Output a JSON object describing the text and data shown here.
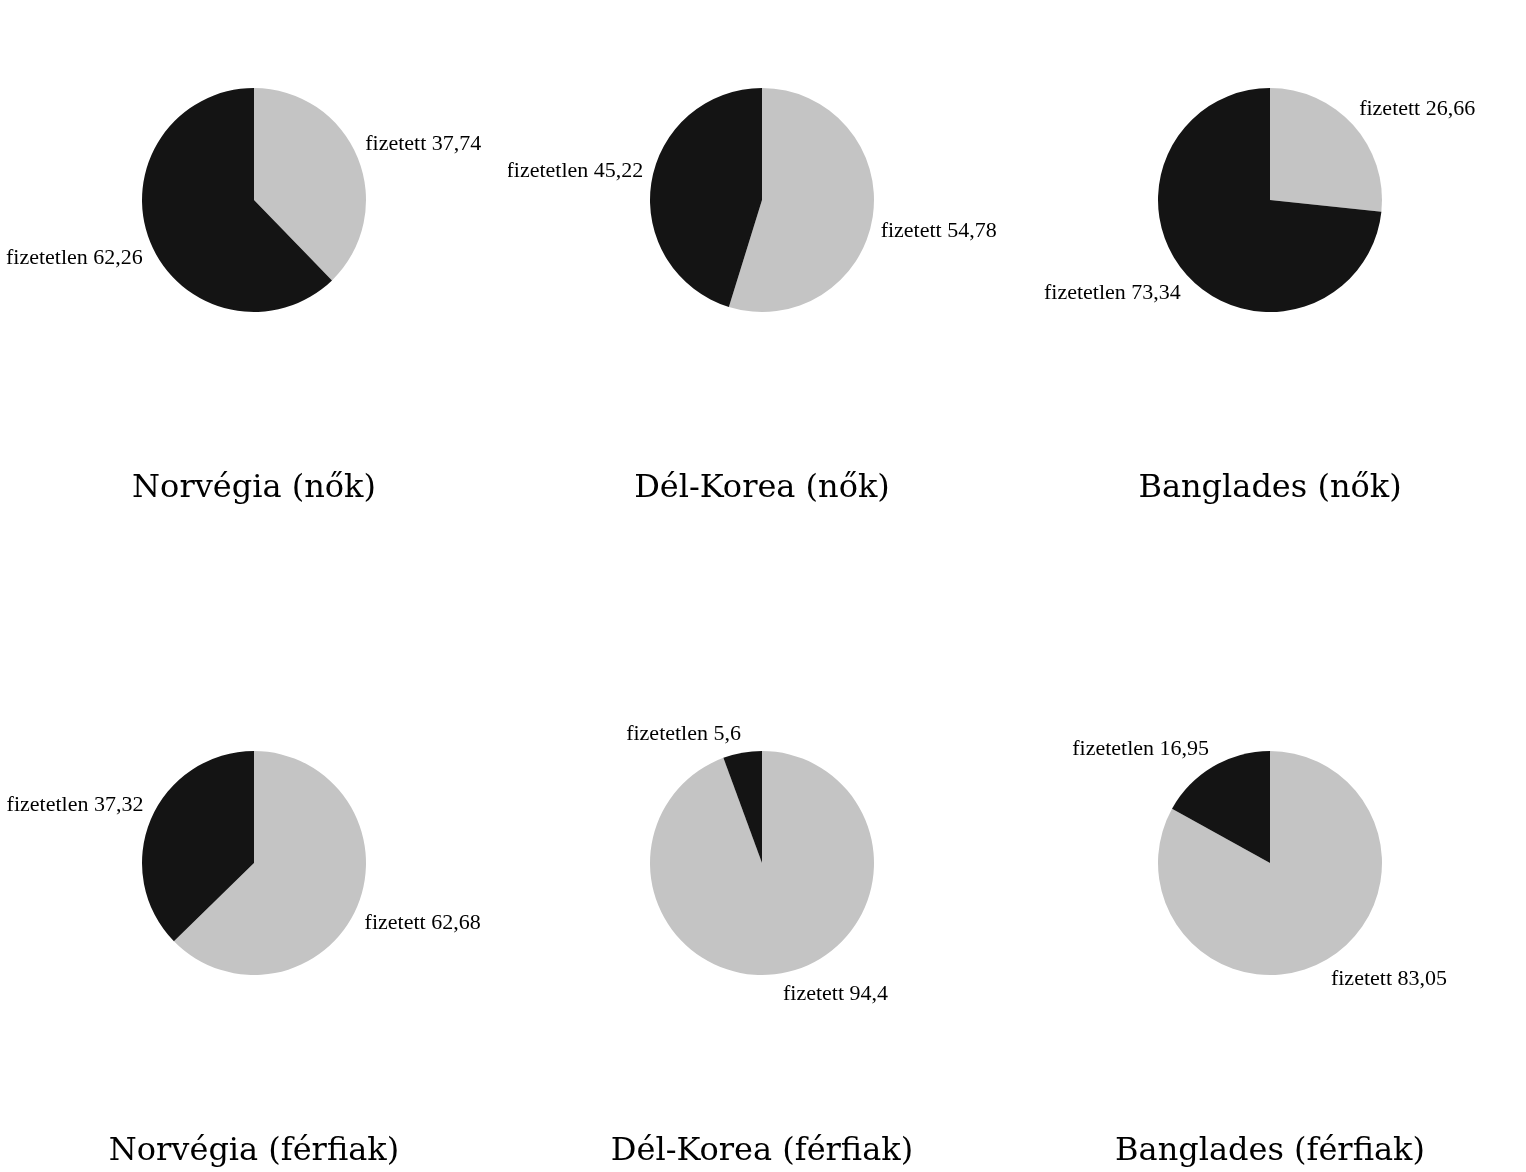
{
  "chart_data": [
    {
      "type": "pie",
      "title": "Norvégia (nők)",
      "categories": [
        "fizetett",
        "fizetetlen"
      ],
      "values": [
        37.74,
        62.26
      ],
      "colors": [
        "#c4c4c4",
        "#141414"
      ],
      "value_labels": [
        "37,74",
        "62,26"
      ]
    },
    {
      "type": "pie",
      "title": "Dél-Korea (nők)",
      "categories": [
        "fizetett",
        "fizetetlen"
      ],
      "values": [
        54.78,
        45.22
      ],
      "colors": [
        "#c4c4c4",
        "#141414"
      ],
      "value_labels": [
        "54,78",
        "45,22"
      ]
    },
    {
      "type": "pie",
      "title": "Banglades (nők)",
      "categories": [
        "fizetett",
        "fizetetlen"
      ],
      "values": [
        26.66,
        73.34
      ],
      "colors": [
        "#c4c4c4",
        "#141414"
      ],
      "value_labels": [
        "26,66",
        "73,34"
      ]
    },
    {
      "type": "pie",
      "title": "Norvégia (férfiak)",
      "categories": [
        "fizetett",
        "fizetetlen"
      ],
      "values": [
        62.68,
        37.32
      ],
      "colors": [
        "#c4c4c4",
        "#141414"
      ],
      "value_labels": [
        "62,68",
        "37,32"
      ]
    },
    {
      "type": "pie",
      "title": "Dél-Korea (férfiak)",
      "categories": [
        "fizetett",
        "fizetetlen"
      ],
      "values": [
        94.4,
        5.6
      ],
      "colors": [
        "#c4c4c4",
        "#141414"
      ],
      "value_labels": [
        "94,4",
        "5,6"
      ]
    },
    {
      "type": "pie",
      "title": "Banglades (férfiak)",
      "categories": [
        "fizetett",
        "fizetetlen"
      ],
      "values": [
        83.05,
        16.95
      ],
      "colors": [
        "#c4c4c4",
        "#141414"
      ],
      "value_labels": [
        "83,05",
        "16,95"
      ]
    }
  ]
}
